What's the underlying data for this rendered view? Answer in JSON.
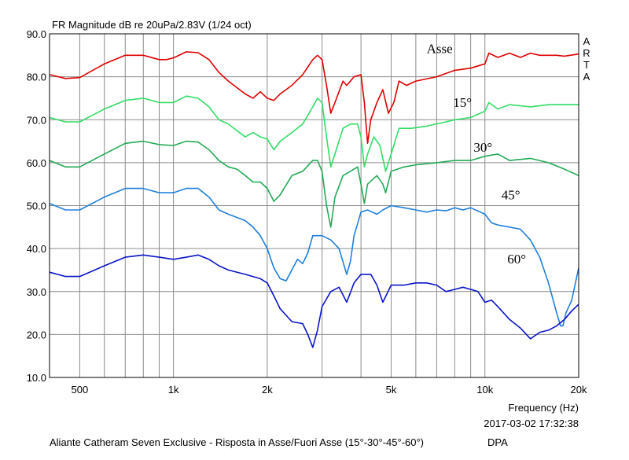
{
  "chart_data": {
    "type": "line",
    "title": "FR Magnitude dB re 20uPa/2.83V (1/24 oct)",
    "xlabel": "Frequency (Hz)",
    "x_scale": "log",
    "xlim": [
      400,
      20000
    ],
    "ylim": [
      10,
      90
    ],
    "x_ticks": [
      {
        "value": 500,
        "label": "500"
      },
      {
        "value": 1000,
        "label": "1k"
      },
      {
        "value": 2000,
        "label": "2k"
      },
      {
        "value": 5000,
        "label": "5k"
      },
      {
        "value": 10000,
        "label": "10k"
      },
      {
        "value": 20000,
        "label": "20k"
      }
    ],
    "y_ticks": [
      {
        "value": 10,
        "label": "10.0"
      },
      {
        "value": 20,
        "label": "20.0"
      },
      {
        "value": 30,
        "label": "30.0"
      },
      {
        "value": 40,
        "label": "40.0"
      },
      {
        "value": 50,
        "label": "50.0"
      },
      {
        "value": 60,
        "label": "60.0"
      },
      {
        "value": 70,
        "label": "70.0"
      },
      {
        "value": 80,
        "label": "80.0"
      },
      {
        "value": 90,
        "label": "90.0"
      }
    ],
    "grid": true,
    "series": [
      {
        "name": "Asse",
        "color": "#e00000",
        "label_at": [
          6500,
          85.5
        ],
        "points": [
          [
            400,
            80.5
          ],
          [
            450,
            79.6
          ],
          [
            500,
            79.8
          ],
          [
            600,
            83
          ],
          [
            700,
            85
          ],
          [
            800,
            85
          ],
          [
            900,
            84
          ],
          [
            950,
            84
          ],
          [
            1000,
            84.4
          ],
          [
            1100,
            85.8
          ],
          [
            1200,
            85.6
          ],
          [
            1300,
            84
          ],
          [
            1400,
            81
          ],
          [
            1500,
            79
          ],
          [
            1700,
            76
          ],
          [
            1800,
            75
          ],
          [
            1900,
            76.5
          ],
          [
            2000,
            75
          ],
          [
            2100,
            74.5
          ],
          [
            2200,
            76
          ],
          [
            2400,
            78
          ],
          [
            2600,
            80.5
          ],
          [
            2800,
            84
          ],
          [
            2900,
            85
          ],
          [
            3000,
            84
          ],
          [
            3100,
            78
          ],
          [
            3200,
            71.5
          ],
          [
            3300,
            74
          ],
          [
            3500,
            79
          ],
          [
            3600,
            78
          ],
          [
            3800,
            80
          ],
          [
            4000,
            80.5
          ],
          [
            4100,
            74
          ],
          [
            4200,
            64.5
          ],
          [
            4300,
            70
          ],
          [
            4500,
            74
          ],
          [
            4700,
            77
          ],
          [
            4900,
            71.5
          ],
          [
            5100,
            74
          ],
          [
            5300,
            79
          ],
          [
            5600,
            78
          ],
          [
            6000,
            79
          ],
          [
            7000,
            80
          ],
          [
            8000,
            81.5
          ],
          [
            9000,
            82
          ],
          [
            10000,
            83
          ],
          [
            10300,
            85.5
          ],
          [
            11000,
            84.5
          ],
          [
            12000,
            85.5
          ],
          [
            13000,
            84.5
          ],
          [
            14000,
            85.5
          ],
          [
            15000,
            85
          ],
          [
            17000,
            85
          ],
          [
            18000,
            84.8
          ],
          [
            20000,
            85.3
          ]
        ]
      },
      {
        "name": "15°",
        "color": "#33dd66",
        "label_at": [
          7900,
          73
        ],
        "points": [
          [
            400,
            70.5
          ],
          [
            450,
            69.5
          ],
          [
            500,
            69.5
          ],
          [
            600,
            72.5
          ],
          [
            700,
            74.5
          ],
          [
            800,
            75
          ],
          [
            900,
            74
          ],
          [
            1000,
            74
          ],
          [
            1100,
            75.5
          ],
          [
            1200,
            75
          ],
          [
            1300,
            73
          ],
          [
            1400,
            70
          ],
          [
            1500,
            69
          ],
          [
            1700,
            66
          ],
          [
            1800,
            67
          ],
          [
            1900,
            66
          ],
          [
            2000,
            65.5
          ],
          [
            2100,
            63
          ],
          [
            2200,
            65
          ],
          [
            2400,
            67
          ],
          [
            2600,
            69
          ],
          [
            2800,
            73
          ],
          [
            2900,
            75
          ],
          [
            3000,
            74
          ],
          [
            3100,
            66
          ],
          [
            3200,
            59
          ],
          [
            3300,
            62
          ],
          [
            3500,
            68
          ],
          [
            3700,
            69
          ],
          [
            3900,
            69
          ],
          [
            4000,
            66
          ],
          [
            4100,
            59
          ],
          [
            4200,
            62
          ],
          [
            4400,
            66
          ],
          [
            4600,
            64
          ],
          [
            4800,
            58
          ],
          [
            5000,
            62
          ],
          [
            5300,
            68
          ],
          [
            5800,
            68
          ],
          [
            6500,
            68.5
          ],
          [
            7500,
            69.5
          ],
          [
            8000,
            70
          ],
          [
            9000,
            70.5
          ],
          [
            10000,
            72
          ],
          [
            10300,
            74
          ],
          [
            11000,
            72.5
          ],
          [
            12000,
            73.5
          ],
          [
            14000,
            73
          ],
          [
            16000,
            73.5
          ],
          [
            18000,
            73.5
          ],
          [
            20000,
            73.5
          ]
        ]
      },
      {
        "name": "30°",
        "color": "#22aa55",
        "label_at": [
          9200,
          62.5
        ],
        "points": [
          [
            400,
            60.5
          ],
          [
            450,
            59
          ],
          [
            500,
            59
          ],
          [
            600,
            62
          ],
          [
            700,
            64.5
          ],
          [
            800,
            65
          ],
          [
            900,
            64.2
          ],
          [
            1000,
            64
          ],
          [
            1100,
            65
          ],
          [
            1200,
            64.8
          ],
          [
            1300,
            63
          ],
          [
            1400,
            60.5
          ],
          [
            1500,
            59
          ],
          [
            1600,
            58.5
          ],
          [
            1700,
            57
          ],
          [
            1800,
            55.5
          ],
          [
            1900,
            55.5
          ],
          [
            2000,
            54
          ],
          [
            2100,
            51
          ],
          [
            2200,
            52.5
          ],
          [
            2400,
            57
          ],
          [
            2600,
            58
          ],
          [
            2800,
            60.5
          ],
          [
            2900,
            60.5
          ],
          [
            3000,
            58
          ],
          [
            3100,
            50
          ],
          [
            3200,
            45
          ],
          [
            3300,
            52
          ],
          [
            3500,
            57
          ],
          [
            3700,
            58
          ],
          [
            3900,
            59
          ],
          [
            4000,
            55
          ],
          [
            4100,
            50.5
          ],
          [
            4200,
            55
          ],
          [
            4500,
            57
          ],
          [
            4700,
            55
          ],
          [
            4800,
            53
          ],
          [
            5000,
            58
          ],
          [
            5500,
            59
          ],
          [
            6000,
            59.5
          ],
          [
            7000,
            60
          ],
          [
            8000,
            60.5
          ],
          [
            9000,
            60.5
          ],
          [
            10000,
            61.5
          ],
          [
            11000,
            62
          ],
          [
            12000,
            60.5
          ],
          [
            14000,
            61
          ],
          [
            16000,
            60
          ],
          [
            18000,
            58.5
          ],
          [
            20000,
            57
          ]
        ]
      },
      {
        "name": "45°",
        "color": "#1f7fdd",
        "label_at": [
          11300,
          51.5
        ],
        "points": [
          [
            400,
            50.5
          ],
          [
            450,
            49
          ],
          [
            500,
            49
          ],
          [
            600,
            52
          ],
          [
            700,
            54
          ],
          [
            800,
            54
          ],
          [
            900,
            53
          ],
          [
            1000,
            53
          ],
          [
            1100,
            54
          ],
          [
            1200,
            54
          ],
          [
            1300,
            52
          ],
          [
            1400,
            49
          ],
          [
            1500,
            48
          ],
          [
            1700,
            46.5
          ],
          [
            1800,
            45
          ],
          [
            1900,
            43
          ],
          [
            2000,
            40
          ],
          [
            2100,
            35.5
          ],
          [
            2200,
            33
          ],
          [
            2300,
            32.5
          ],
          [
            2400,
            35
          ],
          [
            2500,
            37.5
          ],
          [
            2600,
            36.5
          ],
          [
            2700,
            39
          ],
          [
            2800,
            43
          ],
          [
            3000,
            43
          ],
          [
            3200,
            42
          ],
          [
            3400,
            40
          ],
          [
            3600,
            34
          ],
          [
            3700,
            37
          ],
          [
            3800,
            43
          ],
          [
            4000,
            48.5
          ],
          [
            4200,
            49
          ],
          [
            4500,
            48
          ],
          [
            4700,
            49
          ],
          [
            5000,
            50
          ],
          [
            5500,
            49.5
          ],
          [
            6000,
            49
          ],
          [
            6500,
            48.5
          ],
          [
            7000,
            49
          ],
          [
            7500,
            48.8
          ],
          [
            8000,
            49.5
          ],
          [
            8500,
            49
          ],
          [
            9000,
            49.5
          ],
          [
            10000,
            48
          ],
          [
            10500,
            46
          ],
          [
            11000,
            45.5
          ],
          [
            12000,
            45
          ],
          [
            13000,
            44.5
          ],
          [
            14000,
            42
          ],
          [
            15000,
            38
          ],
          [
            16000,
            32
          ],
          [
            17000,
            25
          ],
          [
            17500,
            22
          ],
          [
            17800,
            22
          ],
          [
            18200,
            25
          ],
          [
            19000,
            28
          ],
          [
            20000,
            35.5
          ]
        ]
      },
      {
        "name": "60°",
        "color": "#0a14c8",
        "label_at": [
          11800,
          36.5
        ],
        "points": [
          [
            400,
            34.5
          ],
          [
            450,
            33.5
          ],
          [
            500,
            33.5
          ],
          [
            600,
            36
          ],
          [
            700,
            38
          ],
          [
            800,
            38.5
          ],
          [
            900,
            38
          ],
          [
            1000,
            37.5
          ],
          [
            1100,
            38
          ],
          [
            1200,
            38.5
          ],
          [
            1300,
            37.5
          ],
          [
            1400,
            36
          ],
          [
            1500,
            35
          ],
          [
            1700,
            34
          ],
          [
            1900,
            33
          ],
          [
            2000,
            32
          ],
          [
            2100,
            29
          ],
          [
            2200,
            26
          ],
          [
            2400,
            23
          ],
          [
            2600,
            22.5
          ],
          [
            2700,
            20
          ],
          [
            2800,
            17
          ],
          [
            2900,
            21
          ],
          [
            3000,
            26.5
          ],
          [
            3200,
            30
          ],
          [
            3400,
            31
          ],
          [
            3600,
            27.5
          ],
          [
            3800,
            32
          ],
          [
            4000,
            34
          ],
          [
            4300,
            34
          ],
          [
            4500,
            31.5
          ],
          [
            4700,
            27.5
          ],
          [
            5000,
            31.5
          ],
          [
            5500,
            31.5
          ],
          [
            6000,
            32
          ],
          [
            6500,
            32
          ],
          [
            7000,
            31.5
          ],
          [
            7500,
            30
          ],
          [
            8000,
            30.5
          ],
          [
            8500,
            31
          ],
          [
            9000,
            30.5
          ],
          [
            9500,
            30
          ],
          [
            10000,
            27.5
          ],
          [
            10500,
            28
          ],
          [
            11000,
            26.5
          ],
          [
            12000,
            23.5
          ],
          [
            13000,
            21.5
          ],
          [
            14000,
            19
          ],
          [
            15000,
            20.5
          ],
          [
            16000,
            21
          ],
          [
            17000,
            22
          ],
          [
            18000,
            23.5
          ],
          [
            19000,
            25.5
          ],
          [
            20000,
            27
          ]
        ]
      }
    ],
    "side_label": [
      "A",
      "R",
      "T",
      "A"
    ],
    "footer": {
      "timestamp": "2017-03-02  17:32:38",
      "caption": "Aliante Catheram Seven Exclusive - Risposta in Asse/Fuori Asse (15°-30°-45°-60°)",
      "brand": "DPA"
    }
  }
}
